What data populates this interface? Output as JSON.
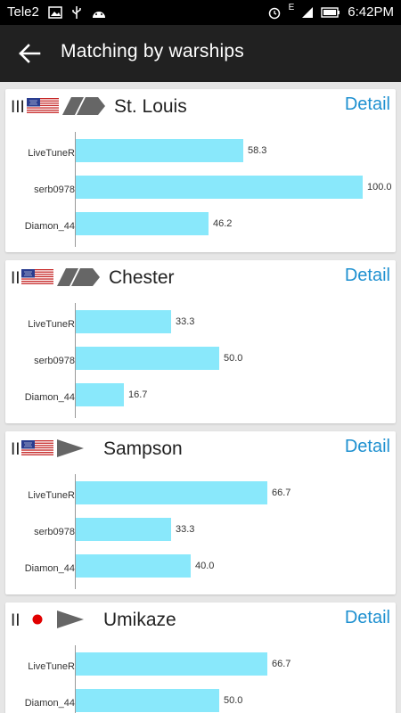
{
  "status": {
    "carrier": "Tele2",
    "time": "6:42PM",
    "network": "E"
  },
  "appbar": {
    "title": "Matching by warships"
  },
  "cards": [
    {
      "tier": "III",
      "flag": "us-flag-icon",
      "type": "cruiser",
      "name": "St. Louis",
      "detail_label": "Detail",
      "rows": [
        {
          "player": "LiveTuneR",
          "value": 58.3,
          "label": "58.3"
        },
        {
          "player": "serb0978",
          "value": 100.0,
          "label": "100.0"
        },
        {
          "player": "Diamon_44",
          "value": 46.2,
          "label": "46.2"
        }
      ]
    },
    {
      "tier": "II",
      "flag": "us-flag-icon",
      "type": "cruiser",
      "name": "Chester",
      "detail_label": "Detail",
      "rows": [
        {
          "player": "LiveTuneR",
          "value": 33.3,
          "label": "33.3"
        },
        {
          "player": "serb0978",
          "value": 50.0,
          "label": "50.0"
        },
        {
          "player": "Diamon_44",
          "value": 16.7,
          "label": "16.7"
        }
      ]
    },
    {
      "tier": "II",
      "flag": "us-flag-icon",
      "type": "destroyer",
      "name": "Sampson",
      "detail_label": "Detail",
      "rows": [
        {
          "player": "LiveTuneR",
          "value": 66.7,
          "label": "66.7"
        },
        {
          "player": "serb0978",
          "value": 33.3,
          "label": "33.3"
        },
        {
          "player": "Diamon_44",
          "value": 40.0,
          "label": "40.0"
        }
      ]
    },
    {
      "tier": "II",
      "flag": "japan-flag-icon",
      "type": "destroyer",
      "name": "Umikaze",
      "detail_label": "Detail",
      "rows": [
        {
          "player": "LiveTuneR",
          "value": 66.7,
          "label": "66.7"
        },
        {
          "player": "Diamon_44",
          "value": 50.0,
          "label": "50.0"
        }
      ]
    }
  ],
  "colors": {
    "bar": "#89e8fb",
    "accent": "#1e90d0",
    "appbar": "#212121"
  }
}
